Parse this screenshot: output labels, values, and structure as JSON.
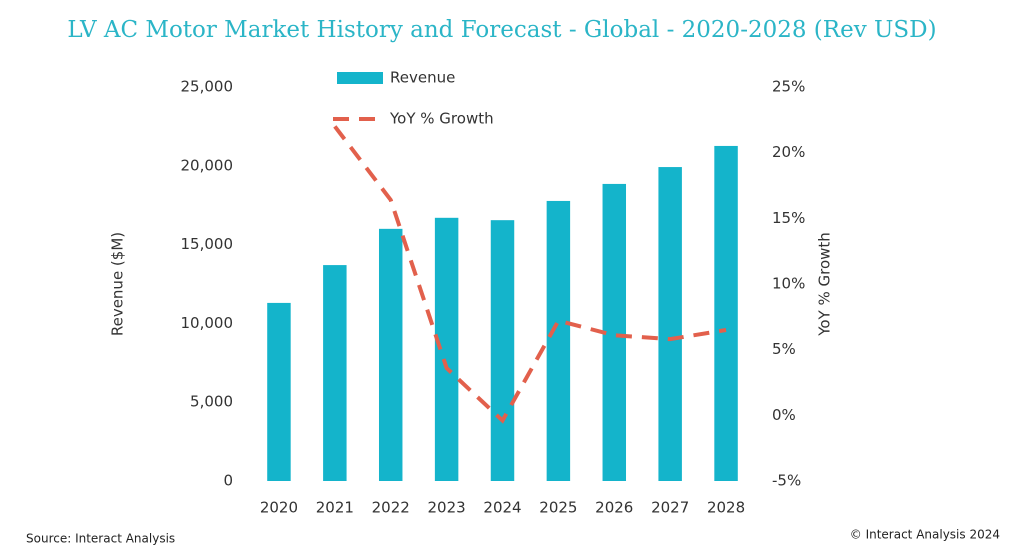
{
  "chart_data": {
    "type": "bar-line",
    "title": "LV AC Motor Market History and Forecast - Global - 2020-2028 (Rev USD)",
    "ylabel": "Revenue ($M)",
    "y2label": "YoY %  Growth",
    "categories": [
      "2020",
      "2021",
      "2022",
      "2023",
      "2024",
      "2025",
      "2026",
      "2027",
      "2028"
    ],
    "series": [
      {
        "name": "Revenue",
        "type": "bar",
        "color": "#14b4cb",
        "values": [
          11300,
          13700,
          16000,
          16700,
          16550,
          17770,
          18850,
          19920,
          21260
        ]
      },
      {
        "name": "YoY % Growth",
        "type": "line",
        "axis": "y2",
        "dashed": true,
        "color": "#e2604c",
        "values": [
          null,
          22,
          16.4,
          3.6,
          -0.4,
          7.2,
          6.1,
          5.8,
          6.5
        ]
      }
    ],
    "ylim": [
      0,
      25000
    ],
    "yticks": [
      0,
      {
        "value": 5000,
        "label": "5,000"
      },
      {
        "value": 10000,
        "label": "10,000"
      },
      {
        "value": 15000,
        "label": "15,000"
      },
      {
        "value": 20000,
        "label": "20,000"
      },
      {
        "value": 25000,
        "label": "25,000"
      }
    ],
    "y2lim": [
      -5,
      25
    ],
    "y2ticks": [
      {
        "value": -5,
        "label": "-5%"
      },
      {
        "value": 0,
        "label": "0%"
      },
      {
        "value": 5,
        "label": "5%"
      },
      {
        "value": 10,
        "label": "10%"
      },
      {
        "value": 15,
        "label": "15%"
      },
      {
        "value": 20,
        "label": "20%"
      },
      {
        "value": 25,
        "label": "25%"
      }
    ],
    "grid": false
  },
  "footer": {
    "source": "Source: Interact Analysis",
    "copyright": "© Interact Analysis 2024"
  }
}
